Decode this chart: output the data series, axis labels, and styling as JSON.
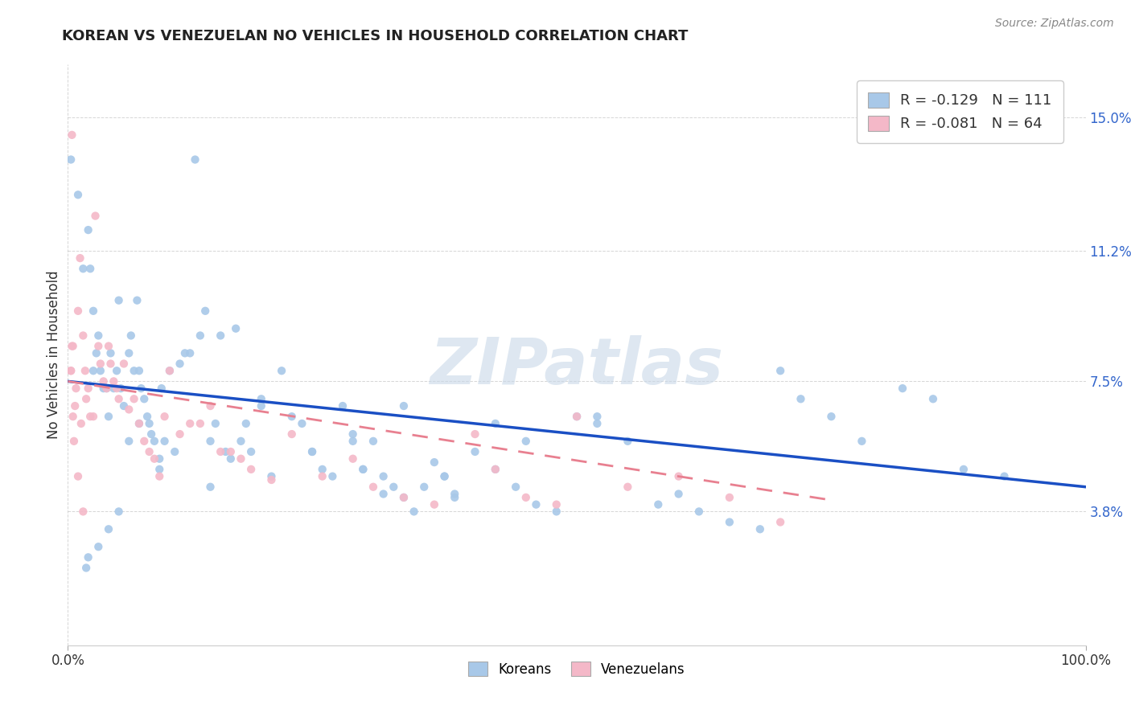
{
  "title": "KOREAN VS VENEZUELAN NO VEHICLES IN HOUSEHOLD CORRELATION CHART",
  "source": "Source: ZipAtlas.com",
  "ylabel": "No Vehicles in Household",
  "xlim": [
    0.0,
    1.0
  ],
  "ylim": [
    0.0,
    0.165
  ],
  "yticks": [
    0.038,
    0.075,
    0.112,
    0.15
  ],
  "ytick_labels": [
    "3.8%",
    "7.5%",
    "11.2%",
    "15.0%"
  ],
  "xtick_vals": [
    0.0,
    1.0
  ],
  "xtick_labels": [
    "0.0%",
    "100.0%"
  ],
  "korean_color": "#a8c8e8",
  "venezuelan_color": "#f4b8c8",
  "korean_line_color": "#1a4fc4",
  "venezuelan_line_color": "#e88090",
  "korean_R": -0.129,
  "korean_N": 111,
  "venezuelan_R": -0.081,
  "venezuelan_N": 64,
  "watermark": "ZIPatlas",
  "legend_label_korean": "Koreans",
  "legend_label_venezuelan": "Venezuelans",
  "korean_intercept": 0.075,
  "korean_slope": -0.03,
  "venezuelan_intercept": 0.075,
  "venezuelan_slope": -0.045,
  "korean_x": [
    0.003,
    0.01,
    0.015,
    0.02,
    0.022,
    0.025,
    0.025,
    0.028,
    0.03,
    0.032,
    0.035,
    0.038,
    0.04,
    0.042,
    0.045,
    0.048,
    0.05,
    0.052,
    0.055,
    0.06,
    0.062,
    0.065,
    0.068,
    0.07,
    0.072,
    0.075,
    0.078,
    0.08,
    0.082,
    0.085,
    0.09,
    0.092,
    0.095,
    0.1,
    0.105,
    0.11,
    0.115,
    0.12,
    0.125,
    0.13,
    0.135,
    0.14,
    0.145,
    0.15,
    0.155,
    0.16,
    0.165,
    0.17,
    0.175,
    0.18,
    0.19,
    0.2,
    0.21,
    0.22,
    0.23,
    0.24,
    0.25,
    0.26,
    0.27,
    0.28,
    0.29,
    0.3,
    0.31,
    0.32,
    0.33,
    0.35,
    0.36,
    0.37,
    0.38,
    0.4,
    0.42,
    0.44,
    0.46,
    0.48,
    0.5,
    0.52,
    0.55,
    0.58,
    0.6,
    0.62,
    0.65,
    0.68,
    0.7,
    0.72,
    0.75,
    0.78,
    0.82,
    0.85,
    0.88,
    0.92,
    0.31,
    0.34,
    0.28,
    0.42,
    0.37,
    0.33,
    0.45,
    0.52,
    0.38,
    0.29,
    0.24,
    0.19,
    0.14,
    0.09,
    0.07,
    0.06,
    0.05,
    0.04,
    0.03,
    0.02,
    0.018
  ],
  "korean_y": [
    0.138,
    0.128,
    0.107,
    0.118,
    0.107,
    0.095,
    0.078,
    0.083,
    0.088,
    0.078,
    0.073,
    0.073,
    0.065,
    0.083,
    0.073,
    0.078,
    0.098,
    0.073,
    0.068,
    0.083,
    0.088,
    0.078,
    0.098,
    0.078,
    0.073,
    0.07,
    0.065,
    0.063,
    0.06,
    0.058,
    0.053,
    0.073,
    0.058,
    0.078,
    0.055,
    0.08,
    0.083,
    0.083,
    0.138,
    0.088,
    0.095,
    0.058,
    0.063,
    0.088,
    0.055,
    0.053,
    0.09,
    0.058,
    0.063,
    0.055,
    0.07,
    0.048,
    0.078,
    0.065,
    0.063,
    0.055,
    0.05,
    0.048,
    0.068,
    0.06,
    0.05,
    0.058,
    0.048,
    0.045,
    0.042,
    0.045,
    0.052,
    0.048,
    0.042,
    0.055,
    0.05,
    0.045,
    0.04,
    0.038,
    0.065,
    0.063,
    0.058,
    0.04,
    0.043,
    0.038,
    0.035,
    0.033,
    0.078,
    0.07,
    0.065,
    0.058,
    0.073,
    0.07,
    0.05,
    0.048,
    0.043,
    0.038,
    0.058,
    0.063,
    0.048,
    0.068,
    0.058,
    0.065,
    0.043,
    0.05,
    0.055,
    0.068,
    0.045,
    0.05,
    0.063,
    0.058,
    0.038,
    0.033,
    0.028,
    0.025,
    0.022
  ],
  "venezuelan_x": [
    0.003,
    0.004,
    0.005,
    0.007,
    0.008,
    0.01,
    0.012,
    0.013,
    0.015,
    0.017,
    0.018,
    0.02,
    0.022,
    0.025,
    0.027,
    0.03,
    0.032,
    0.035,
    0.038,
    0.04,
    0.042,
    0.045,
    0.048,
    0.05,
    0.055,
    0.06,
    0.065,
    0.07,
    0.075,
    0.08,
    0.085,
    0.09,
    0.095,
    0.1,
    0.11,
    0.12,
    0.13,
    0.14,
    0.15,
    0.16,
    0.17,
    0.18,
    0.2,
    0.22,
    0.25,
    0.28,
    0.3,
    0.33,
    0.36,
    0.4,
    0.42,
    0.45,
    0.48,
    0.5,
    0.55,
    0.6,
    0.65,
    0.7,
    0.003,
    0.004,
    0.005,
    0.006,
    0.01,
    0.015
  ],
  "venezuelan_y": [
    0.078,
    0.145,
    0.085,
    0.068,
    0.073,
    0.095,
    0.11,
    0.063,
    0.088,
    0.078,
    0.07,
    0.073,
    0.065,
    0.065,
    0.122,
    0.085,
    0.08,
    0.075,
    0.073,
    0.085,
    0.08,
    0.075,
    0.073,
    0.07,
    0.08,
    0.067,
    0.07,
    0.063,
    0.058,
    0.055,
    0.053,
    0.048,
    0.065,
    0.078,
    0.06,
    0.063,
    0.063,
    0.068,
    0.055,
    0.055,
    0.053,
    0.05,
    0.047,
    0.06,
    0.048,
    0.053,
    0.045,
    0.042,
    0.04,
    0.06,
    0.05,
    0.042,
    0.04,
    0.065,
    0.045,
    0.048,
    0.042,
    0.035,
    0.078,
    0.085,
    0.065,
    0.058,
    0.048,
    0.038
  ]
}
